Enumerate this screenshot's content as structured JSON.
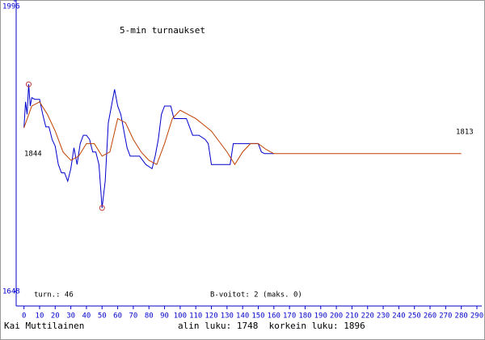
{
  "chart_data": {
    "type": "line",
    "title": "5-min turnaukset",
    "start_label": "1844",
    "end_label": "1813",
    "games_label": "turn.: 46",
    "bonus_label": "B-voitot: 2 (maks. 0)",
    "author": "Kai Muttilainen",
    "footer_stats": "alin luku: 1748  korkein luku: 1896",
    "axis_color": "#0000cc",
    "marker_color": "#c04040",
    "series": [
      {
        "color": "#0000cc",
        "x": [
          0,
          1,
          2,
          3,
          4,
          5,
          7,
          10,
          12,
          14,
          16,
          18,
          20,
          22,
          24,
          26,
          28,
          30,
          32,
          34,
          36,
          38,
          40,
          42,
          44,
          46,
          48,
          50,
          52,
          54,
          56,
          58,
          60,
          62,
          64,
          66,
          68,
          70,
          74,
          78,
          82,
          84,
          86,
          88,
          90,
          94,
          96,
          100,
          104,
          106,
          108,
          112,
          116,
          118,
          120,
          124,
          132,
          134,
          140,
          150,
          152,
          154,
          160
        ],
        "values": [
          1844,
          1875,
          1860,
          1896,
          1870,
          1880,
          1878,
          1878,
          1860,
          1845,
          1845,
          1830,
          1822,
          1800,
          1790,
          1790,
          1780,
          1795,
          1820,
          1800,
          1825,
          1835,
          1835,
          1830,
          1815,
          1815,
          1800,
          1748,
          1780,
          1850,
          1870,
          1890,
          1870,
          1860,
          1840,
          1820,
          1810,
          1810,
          1810,
          1800,
          1795,
          1810,
          1830,
          1860,
          1870,
          1870,
          1855,
          1855,
          1855,
          1845,
          1835,
          1835,
          1830,
          1825,
          1800,
          1800,
          1800,
          1825,
          1825,
          1825,
          1815,
          1813,
          1813
        ]
      },
      {
        "color": "#c04000",
        "x": [
          0,
          5,
          10,
          15,
          20,
          25,
          30,
          35,
          40,
          45,
          50,
          55,
          60,
          65,
          70,
          75,
          80,
          85,
          90,
          95,
          100,
          105,
          110,
          120,
          130,
          135,
          140,
          145,
          150,
          155,
          160,
          280
        ],
        "values": [
          1844,
          1870,
          1875,
          1860,
          1840,
          1815,
          1805,
          1810,
          1825,
          1825,
          1810,
          1815,
          1855,
          1850,
          1830,
          1815,
          1805,
          1800,
          1825,
          1855,
          1865,
          1860,
          1855,
          1840,
          1815,
          1800,
          1815,
          1825,
          1825,
          1818,
          1813,
          1813
        ]
      }
    ],
    "xlim": [
      -5,
      290
    ],
    "xticks": [
      0,
      10,
      20,
      30,
      40,
      50,
      60,
      70,
      80,
      90,
      100,
      110,
      120,
      130,
      140,
      150,
      160,
      170,
      180,
      190,
      200,
      210,
      220,
      230,
      240,
      250,
      260,
      270,
      280,
      290
    ],
    "ylim": [
      1648,
      1996
    ],
    "yticks": [
      1648,
      1996
    ]
  }
}
